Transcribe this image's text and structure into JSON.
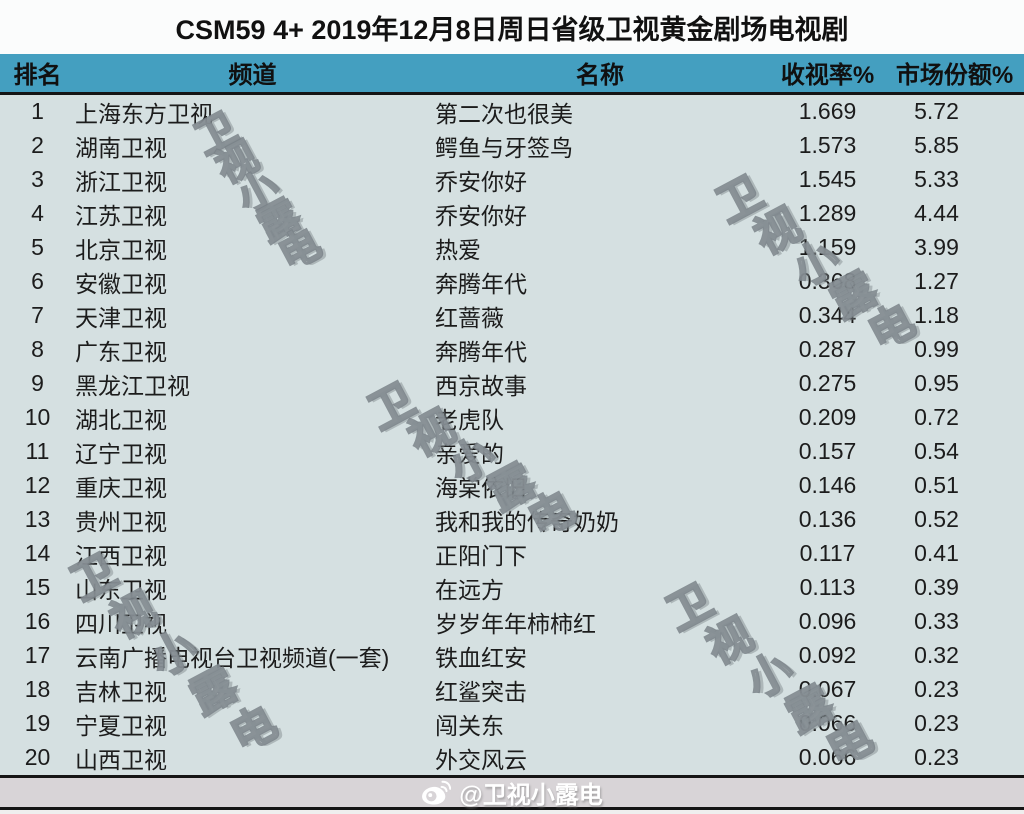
{
  "title": "CSM59 4+ 2019年12月8日周日省级卫视黄金剧场电视剧",
  "table": {
    "headers": {
      "rank": "排名",
      "channel": "频道",
      "name": "名称",
      "rating": "收视率%",
      "share": "市场份额%"
    },
    "rows": [
      {
        "rank": "1",
        "channel": "上海东方卫视",
        "name": "第二次也很美",
        "rating": "1.669",
        "share": "5.72"
      },
      {
        "rank": "2",
        "channel": "湖南卫视",
        "name": "鳄鱼与牙签鸟",
        "rating": "1.573",
        "share": "5.85"
      },
      {
        "rank": "3",
        "channel": "浙江卫视",
        "name": "乔安你好",
        "rating": "1.545",
        "share": "5.33"
      },
      {
        "rank": "4",
        "channel": "江苏卫视",
        "name": "乔安你好",
        "rating": "1.289",
        "share": "4.44"
      },
      {
        "rank": "5",
        "channel": "北京卫视",
        "name": "热爱",
        "rating": "1.159",
        "share": "3.99"
      },
      {
        "rank": "6",
        "channel": "安徽卫视",
        "name": "奔腾年代",
        "rating": "0.368",
        "share": "1.27"
      },
      {
        "rank": "7",
        "channel": "天津卫视",
        "name": "红蔷薇",
        "rating": "0.344",
        "share": "1.18"
      },
      {
        "rank": "8",
        "channel": "广东卫视",
        "name": "奔腾年代",
        "rating": "0.287",
        "share": "0.99"
      },
      {
        "rank": "9",
        "channel": "黑龙江卫视",
        "name": "西京故事",
        "rating": "0.275",
        "share": "0.95"
      },
      {
        "rank": "10",
        "channel": "湖北卫视",
        "name": "老虎队",
        "rating": "0.209",
        "share": "0.72"
      },
      {
        "rank": "11",
        "channel": "辽宁卫视",
        "name": "亲爱的",
        "rating": "0.157",
        "share": "0.54"
      },
      {
        "rank": "12",
        "channel": "重庆卫视",
        "name": "海棠依旧",
        "rating": "0.146",
        "share": "0.51"
      },
      {
        "rank": "13",
        "channel": "贵州卫视",
        "name": "我和我的传奇奶奶",
        "rating": "0.136",
        "share": "0.52"
      },
      {
        "rank": "14",
        "channel": "江西卫视",
        "name": "正阳门下",
        "rating": "0.117",
        "share": "0.41"
      },
      {
        "rank": "15",
        "channel": "山东卫视",
        "name": "在远方",
        "rating": "0.113",
        "share": "0.39"
      },
      {
        "rank": "16",
        "channel": "四川卫视",
        "name": "岁岁年年柿柿红",
        "rating": "0.096",
        "share": "0.33"
      },
      {
        "rank": "17",
        "channel": "云南广播电视台卫视频道(一套)",
        "name": "铁血红安",
        "rating": "0.092",
        "share": "0.32"
      },
      {
        "rank": "18",
        "channel": "吉林卫视",
        "name": "红鲨突击",
        "rating": "0.067",
        "share": "0.23"
      },
      {
        "rank": "19",
        "channel": "宁夏卫视",
        "name": "闯关东",
        "rating": "0.066",
        "share": "0.23"
      },
      {
        "rank": "20",
        "channel": "山西卫视",
        "name": "外交风云",
        "rating": "0.066",
        "share": "0.23"
      }
    ]
  },
  "watermark": {
    "text": "卫视小露电"
  },
  "footer": {
    "handle": "@卫视小露电",
    "icon": "weibo-icon"
  },
  "colors": {
    "header_bg": "#449fc0",
    "body_bg": "#d5e0e1",
    "title_bg": "#fbfcfc",
    "footer_bg": "#d8d4d7",
    "line": "#151515"
  }
}
